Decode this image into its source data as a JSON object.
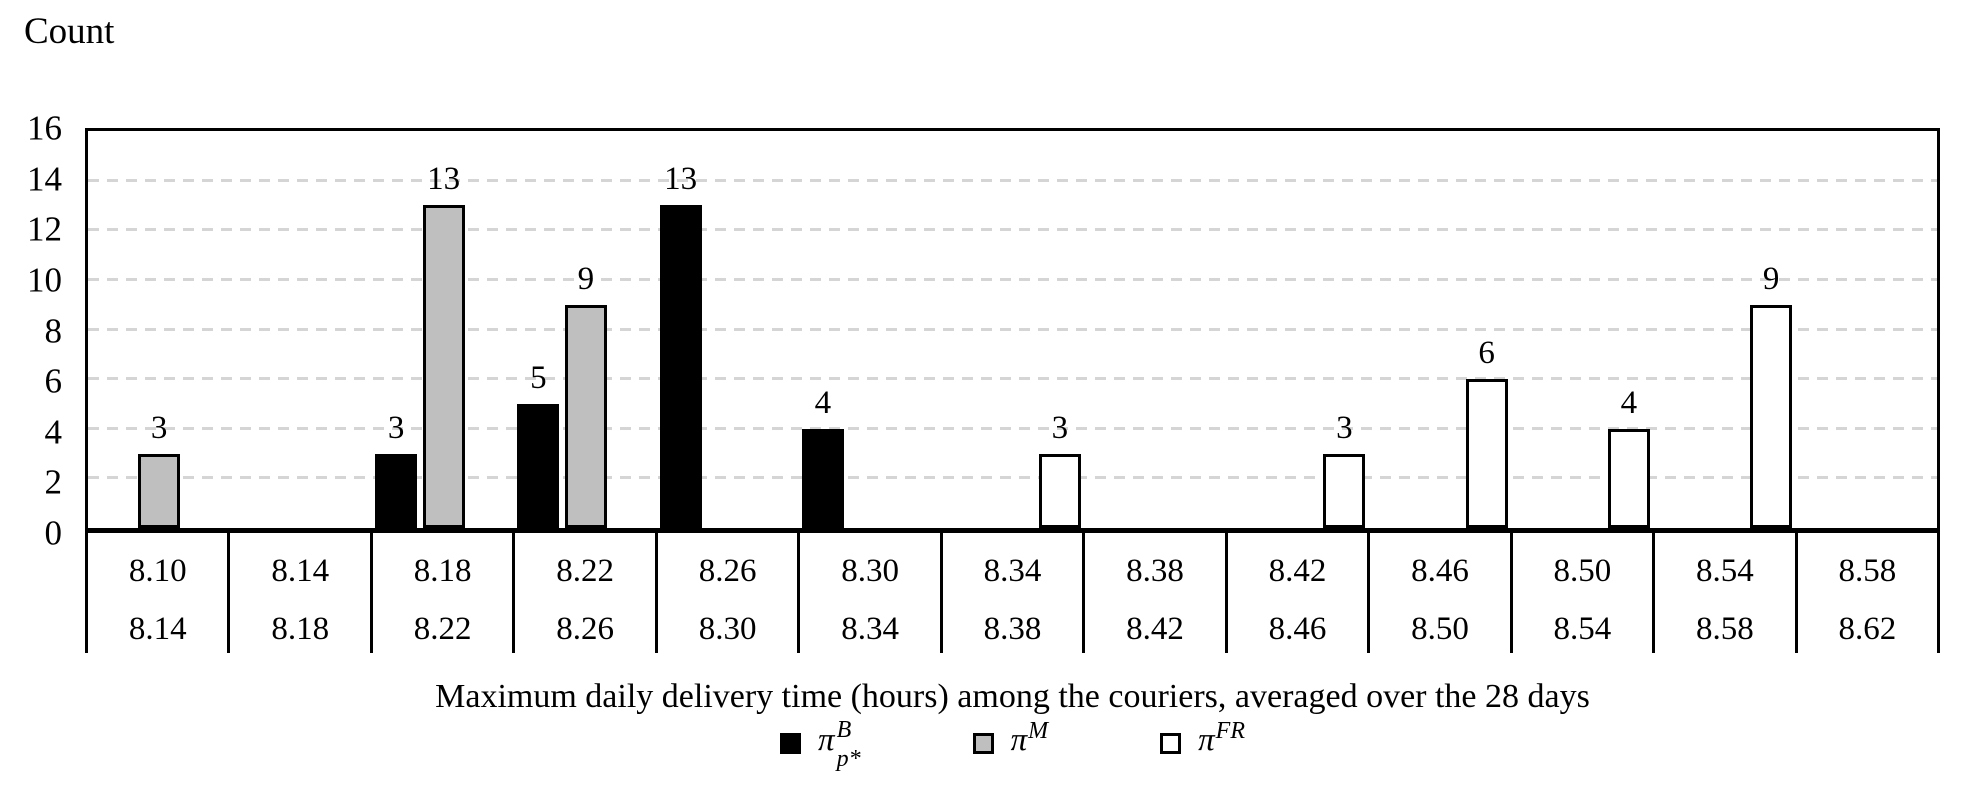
{
  "chart_data": {
    "type": "bar",
    "title": "",
    "ylabel": "Count",
    "xlabel": "Maximum daily delivery time (hours) among the couriers, averaged over the 28 days",
    "ylim": [
      0,
      16
    ],
    "yticks": [
      0,
      2,
      4,
      6,
      8,
      10,
      12,
      14,
      16
    ],
    "grid": "horizontal-dashed",
    "gridline_color": "#d5d5d5",
    "legend_position": "bottom-center",
    "categories": [
      {
        "lower": "8.10",
        "upper": "8.14"
      },
      {
        "lower": "8.14",
        "upper": "8.18"
      },
      {
        "lower": "8.18",
        "upper": "8.22"
      },
      {
        "lower": "8.22",
        "upper": "8.26"
      },
      {
        "lower": "8.26",
        "upper": "8.30"
      },
      {
        "lower": "8.30",
        "upper": "8.34"
      },
      {
        "lower": "8.34",
        "upper": "8.38"
      },
      {
        "lower": "8.38",
        "upper": "8.42"
      },
      {
        "lower": "8.42",
        "upper": "8.46"
      },
      {
        "lower": "8.46",
        "upper": "8.50"
      },
      {
        "lower": "8.50",
        "upper": "8.54"
      },
      {
        "lower": "8.54",
        "upper": "8.58"
      },
      {
        "lower": "8.58",
        "upper": "8.62"
      }
    ],
    "series": [
      {
        "name": "pi_B_pstar",
        "legend_base": "π",
        "legend_sup": "B",
        "legend_sub": "p*",
        "fill": "#000000",
        "stroke": "#000000",
        "values": [
          null,
          null,
          3,
          5,
          13,
          4,
          null,
          null,
          null,
          null,
          null,
          null,
          null
        ]
      },
      {
        "name": "pi_M",
        "legend_base": "π",
        "legend_sup": "M",
        "legend_sub": "",
        "fill": "#bfbfbf",
        "stroke": "#000000",
        "values": [
          3,
          null,
          13,
          9,
          null,
          null,
          null,
          null,
          null,
          null,
          null,
          null,
          null
        ]
      },
      {
        "name": "pi_FR",
        "legend_base": "π",
        "legend_sup": "FR",
        "legend_sub": "",
        "fill": "#ffffff",
        "stroke": "#000000",
        "values": [
          null,
          null,
          null,
          null,
          null,
          null,
          3,
          null,
          3,
          6,
          4,
          9,
          null
        ]
      }
    ]
  }
}
